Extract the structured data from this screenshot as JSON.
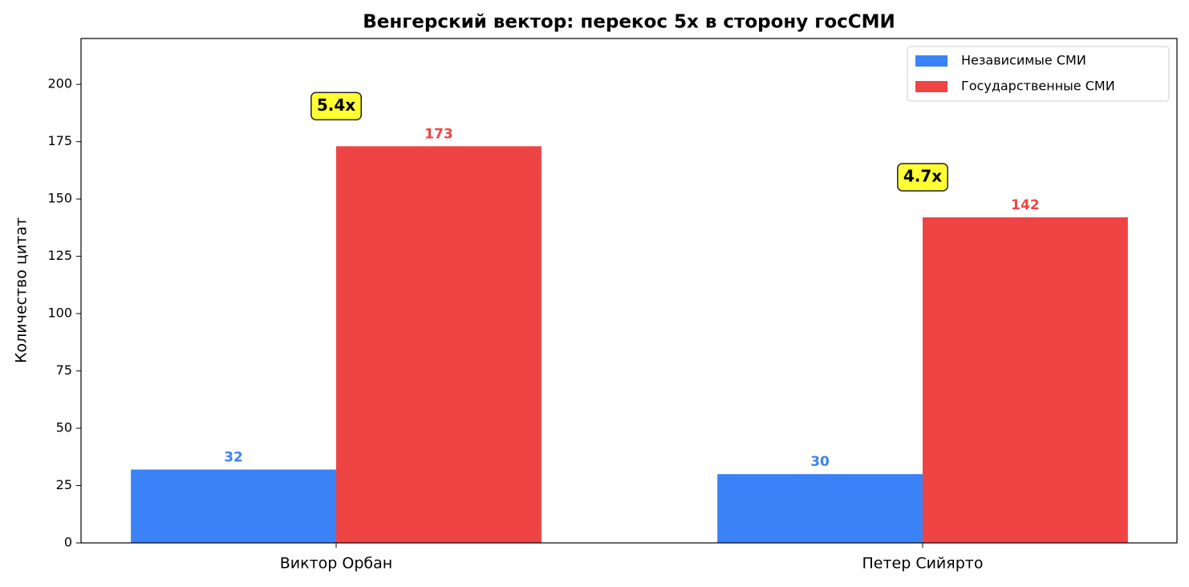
{
  "chart_data": {
    "type": "bar",
    "title": "Венгерский вектор: перекос 5x в сторону госСМИ",
    "y_label": "Количество цитат",
    "categories": [
      "Виктор Орбан",
      "Петер Сийярто"
    ],
    "series": [
      {
        "name": "Независимые СМИ",
        "color": "#3b82f6",
        "values": [
          32,
          30
        ]
      },
      {
        "name": "Государственные СМИ",
        "color": "#ef4444",
        "values": [
          173,
          142
        ]
      }
    ],
    "annotations": [
      "5.4x",
      "4.7x"
    ],
    "ylim": [
      0,
      220
    ],
    "yticks": [
      0,
      25,
      50,
      75,
      100,
      125,
      150,
      175,
      200
    ],
    "legend": "upper right"
  }
}
